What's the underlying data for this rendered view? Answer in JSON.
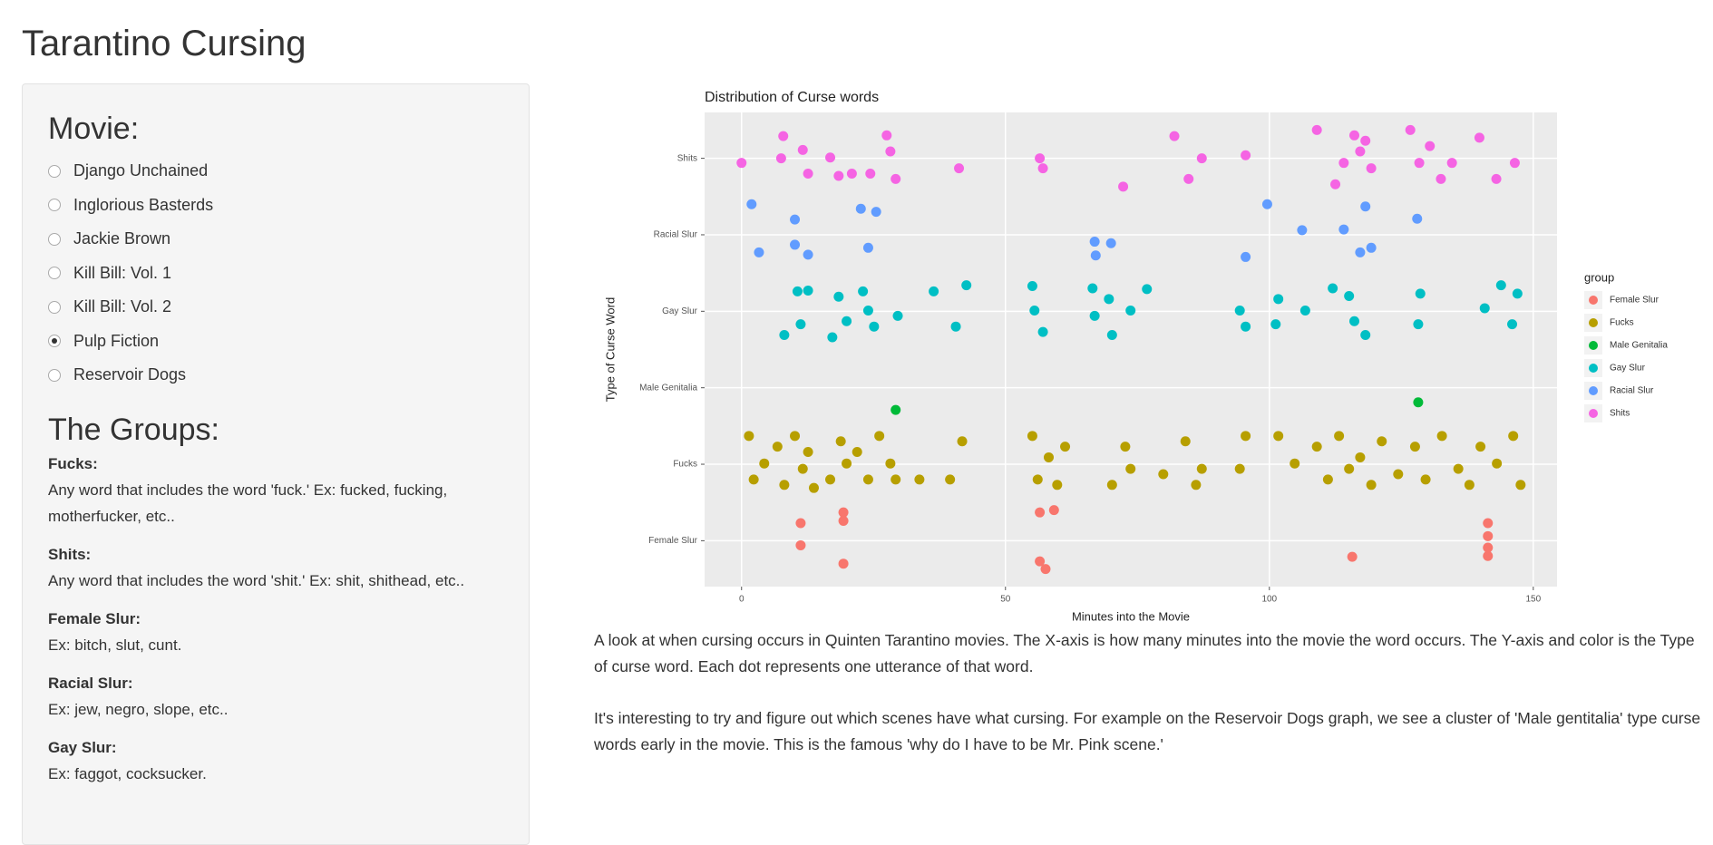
{
  "title": "Tarantino Cursing",
  "sidebar": {
    "movie_label": "Movie:",
    "movies": [
      "Django Unchained",
      "Inglorious Basterds",
      "Jackie Brown",
      "Kill Bill: Vol. 1",
      "Kill Bill: Vol. 2",
      "Pulp Fiction",
      "Reservoir Dogs"
    ],
    "selected_index": 5,
    "groups_label": "The Groups:",
    "groups": [
      {
        "name": "Fucks:",
        "description": "Any word that includes the word 'fuck.' Ex: fucked, fucking, motherfucker, etc.."
      },
      {
        "name": "Shits:",
        "description": "Any word that includes the word 'shit.' Ex: shit, shithead, etc.."
      },
      {
        "name": "Female Slur:",
        "description": "Ex: bitch, slut, cunt."
      },
      {
        "name": "Racial Slur:",
        "description": "Ex: jew, negro, slope, etc.."
      },
      {
        "name": "Gay Slur:",
        "description": "Ex: faggot, cocksucker."
      }
    ]
  },
  "chart_data": {
    "type": "scatter",
    "title": "Distribution of Curse words",
    "x_label": "Minutes into the Movie",
    "y_label": "Type of Curse Word",
    "legend_title": "group",
    "xlim": [
      -7,
      154.5
    ],
    "xticks": [
      0,
      50,
      100,
      150
    ],
    "ylim": [
      0.4,
      6.6
    ],
    "yticks": [
      {
        "value": 1,
        "label": "Female Slur"
      },
      {
        "value": 2,
        "label": "Fucks"
      },
      {
        "value": 3,
        "label": "Male Genitalia"
      },
      {
        "value": 4,
        "label": "Gay Slur"
      },
      {
        "value": 5,
        "label": "Racial Slur"
      },
      {
        "value": 6,
        "label": "Shits"
      }
    ],
    "grid": true,
    "series": [
      {
        "name": "Female Slur",
        "color": "#F8766D",
        "x": [
          11.2,
          11.2,
          19.3,
          19.3,
          19.3,
          56.5,
          56.5,
          57.6,
          59.2,
          115.7,
          141.4,
          141.4,
          141.4,
          141.4
        ],
        "values": [
          1.23,
          0.94,
          1.37,
          1.26,
          0.7,
          1.37,
          0.73,
          0.63,
          1.4,
          0.79,
          1.23,
          1.06,
          0.91,
          0.8
        ]
      },
      {
        "name": "Fucks",
        "color": "#B79F00",
        "x": [
          1.4,
          2.3,
          4.3,
          6.8,
          8.1,
          10.1,
          11.6,
          12.6,
          13.7,
          16.8,
          18.8,
          19.9,
          21.9,
          24.0,
          26.1,
          28.2,
          29.2,
          33.7,
          39.5,
          41.8,
          55.1,
          56.1,
          58.2,
          59.8,
          61.3,
          70.2,
          72.7,
          73.7,
          79.9,
          84.1,
          86.1,
          87.2,
          94.4,
          95.5,
          101.7,
          104.8,
          109.0,
          111.1,
          113.2,
          115.1,
          117.2,
          119.3,
          121.3,
          124.4,
          127.6,
          129.6,
          132.7,
          135.8,
          137.9,
          140.0,
          143.1,
          146.2,
          147.6
        ],
        "values": [
          2.37,
          1.8,
          2.01,
          2.23,
          1.73,
          2.37,
          1.94,
          2.16,
          1.69,
          1.8,
          2.3,
          2.01,
          2.16,
          1.8,
          2.37,
          2.01,
          1.8,
          1.8,
          1.8,
          2.3,
          2.37,
          1.8,
          2.09,
          1.73,
          2.23,
          1.73,
          2.23,
          1.94,
          1.87,
          2.3,
          1.73,
          1.94,
          1.94,
          2.37,
          2.37,
          2.01,
          2.23,
          1.8,
          2.37,
          1.94,
          2.09,
          1.73,
          2.3,
          1.87,
          2.23,
          1.8,
          2.37,
          1.94,
          1.73,
          2.23,
          2.01,
          2.37,
          1.73
        ]
      },
      {
        "name": "Male Genitalia",
        "color": "#00BA38",
        "x": [
          29.2,
          128.2
        ],
        "values": [
          2.71,
          2.81
        ]
      },
      {
        "name": "Gay Slur",
        "color": "#00BFC4",
        "x": [
          8.1,
          10.6,
          12.6,
          11.2,
          17.2,
          18.4,
          19.9,
          23.0,
          24.0,
          25.1,
          29.6,
          36.4,
          40.6,
          42.6,
          55.1,
          55.5,
          57.1,
          66.5,
          66.9,
          69.6,
          70.2,
          73.7,
          76.8,
          94.4,
          95.5,
          101.2,
          101.7,
          106.8,
          112.0,
          115.1,
          116.1,
          118.2,
          128.6,
          128.2,
          140.8,
          143.9,
          146.0,
          147.0
        ],
        "values": [
          3.69,
          4.26,
          4.27,
          3.83,
          3.66,
          4.19,
          3.87,
          4.26,
          4.01,
          3.8,
          3.94,
          4.26,
          3.8,
          4.34,
          4.33,
          4.01,
          3.73,
          4.3,
          3.94,
          4.16,
          3.69,
          4.01,
          4.29,
          4.01,
          3.8,
          3.83,
          4.16,
          4.01,
          4.3,
          4.2,
          3.87,
          3.69,
          4.23,
          3.83,
          4.04,
          4.34,
          3.83,
          4.23
        ]
      },
      {
        "name": "Racial Slur",
        "color": "#619CFF",
        "x": [
          1.9,
          3.3,
          10.1,
          10.1,
          12.6,
          22.6,
          24.0,
          25.5,
          66.9,
          67.1,
          70.0,
          95.5,
          99.6,
          106.2,
          114.1,
          117.2,
          118.2,
          119.3,
          128.0
        ],
        "values": [
          5.4,
          4.77,
          5.2,
          4.87,
          4.74,
          5.34,
          4.83,
          5.3,
          4.91,
          4.73,
          4.89,
          4.71,
          5.4,
          5.06,
          5.07,
          4.77,
          5.37,
          4.83,
          5.21
        ]
      },
      {
        "name": "Shits",
        "color": "#F564E3",
        "x": [
          0,
          7.9,
          7.5,
          11.6,
          12.6,
          16.8,
          18.4,
          20.9,
          24.4,
          27.5,
          28.2,
          29.2,
          41.2,
          56.5,
          57.1,
          72.3,
          82.0,
          84.7,
          87.2,
          95.5,
          109.0,
          112.5,
          114.1,
          116.1,
          117.2,
          119.3,
          118.2,
          126.7,
          128.4,
          130.4,
          132.5,
          134.6,
          139.8,
          143.0,
          146.5
        ],
        "values": [
          5.94,
          6.29,
          6.0,
          6.11,
          5.8,
          6.01,
          5.77,
          5.8,
          5.8,
          6.3,
          6.09,
          5.73,
          5.87,
          6.0,
          5.87,
          5.63,
          6.29,
          5.73,
          6.0,
          6.04,
          6.37,
          5.66,
          5.94,
          6.3,
          6.09,
          5.87,
          6.23,
          6.37,
          5.94,
          6.16,
          5.73,
          5.94,
          6.27,
          5.73,
          5.94
        ]
      }
    ]
  },
  "description": [
    "A look at when cursing occurs in Quinten Tarantino movies. The X-axis is how many minutes into the movie the word occurs. The Y-axis and color is the Type of curse word. Each dot represents one utterance of that word.",
    "It's interesting to try and figure out which scenes have what cursing. For example on the Reservoir Dogs graph, we see a cluster of 'Male gentitalia' type curse words early in the movie. This is the famous 'why do I have to be Mr. Pink scene.'"
  ]
}
